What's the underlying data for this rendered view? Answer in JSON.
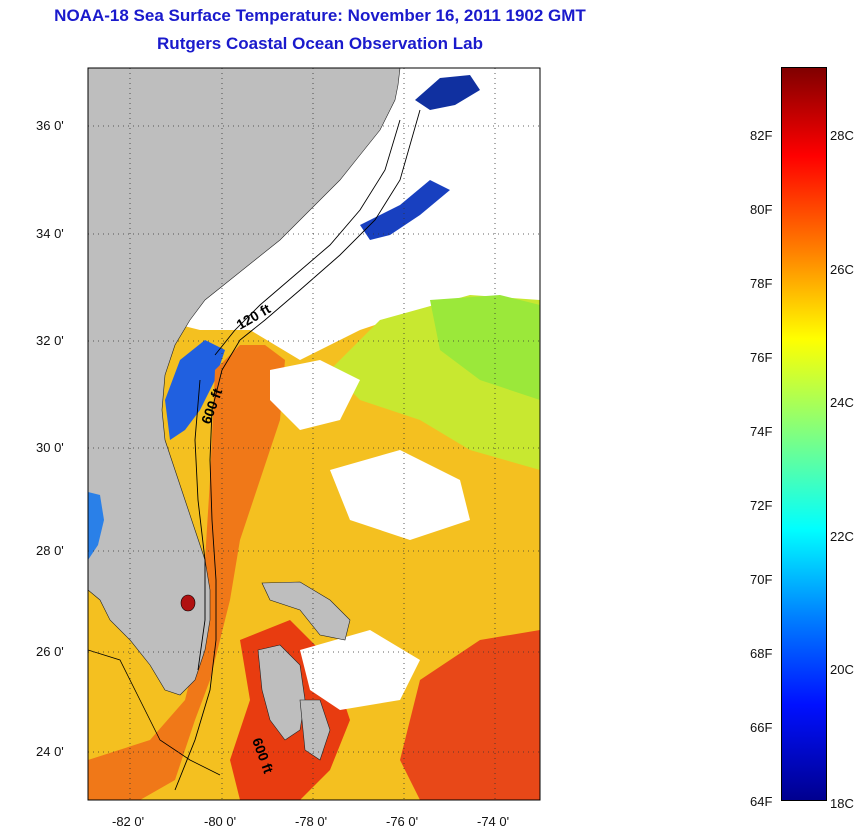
{
  "title": {
    "line1": "NOAA-18 Sea Surface Temperature:  November 16, 2011 1902 GMT",
    "line2": "Rutgers Coastal Ocean Observation Lab"
  },
  "map": {
    "lat_labels": [
      "36 0'",
      "34 0'",
      "32 0'",
      "30 0'",
      "28 0'",
      "26 0'",
      "24 0'"
    ],
    "lon_labels": [
      "-82 0'",
      "-80 0'",
      "-78 0'",
      "-76 0'",
      "-74 0'"
    ],
    "contour_labels": [
      "120 ft",
      "600 ft",
      "600 ft"
    ],
    "land_color": "#bebebe",
    "cloud_color": "#ffffff"
  },
  "colorbar": {
    "fahrenheit_labels": [
      "82F",
      "80F",
      "78F",
      "76F",
      "74F",
      "72F",
      "70F",
      "68F",
      "66F",
      "64F"
    ],
    "celsius_labels": [
      "28C",
      "26C",
      "24C",
      "22C",
      "20C",
      "18C"
    ],
    "min_color": "#00008f",
    "max_color": "#800000"
  }
}
